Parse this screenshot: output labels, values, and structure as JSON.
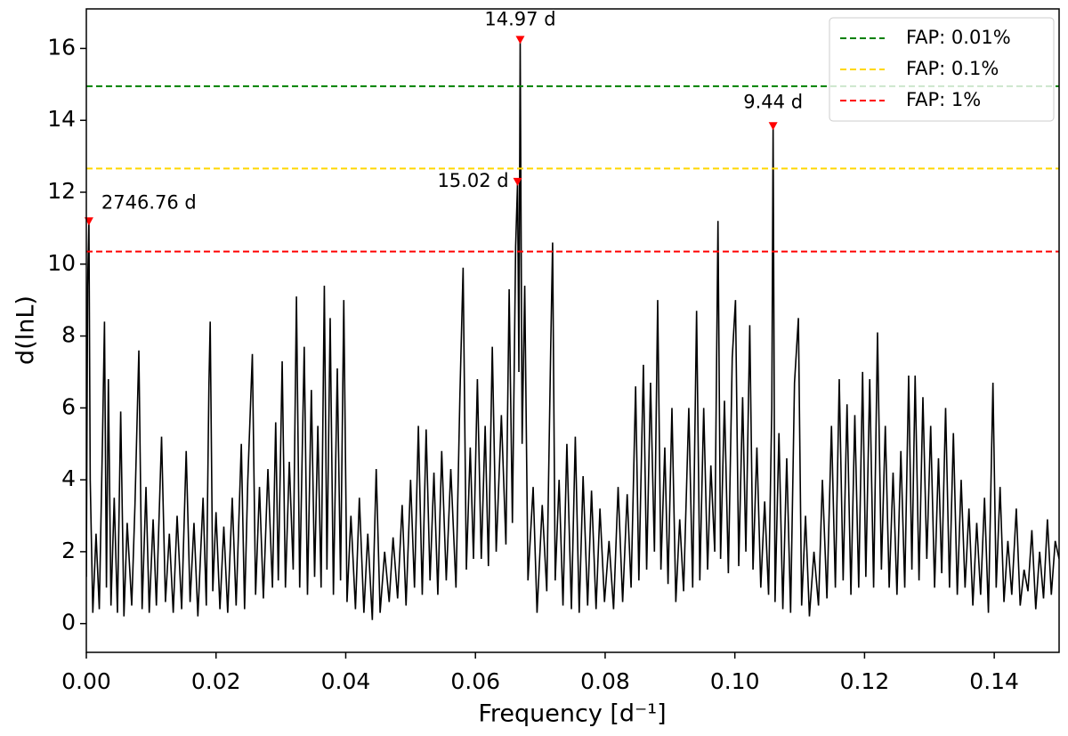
{
  "chart_data": {
    "type": "line",
    "xlabel": "Frequency [d⁻¹]",
    "ylabel": "d(lnL)",
    "xlim": [
      0,
      0.15
    ],
    "ylim": [
      -0.8,
      17.1
    ],
    "xticks": [
      {
        "value": 0,
        "label": "0.00"
      },
      {
        "value": 0.02,
        "label": "0.02"
      },
      {
        "value": 0.04,
        "label": "0.04"
      },
      {
        "value": 0.06,
        "label": "0.06"
      },
      {
        "value": 0.08,
        "label": "0.08"
      },
      {
        "value": 0.1,
        "label": "0.10"
      },
      {
        "value": 0.12,
        "label": "0.12"
      },
      {
        "value": 0.14,
        "label": "0.14"
      }
    ],
    "yticks": [
      0,
      2,
      4,
      6,
      8,
      10,
      12,
      14,
      16
    ],
    "legend": "upper right",
    "x": [
      0.0,
      0.0002,
      0.0004,
      0.0006,
      0.001,
      0.0015,
      0.002,
      0.0025,
      0.0028,
      0.0031,
      0.0034,
      0.0038,
      0.0043,
      0.0048,
      0.0053,
      0.0058,
      0.0063,
      0.007,
      0.0075,
      0.0081,
      0.0086,
      0.0092,
      0.0097,
      0.0103,
      0.0108,
      0.0116,
      0.0122,
      0.0128,
      0.0134,
      0.014,
      0.0147,
      0.0154,
      0.016,
      0.0166,
      0.0172,
      0.018,
      0.0185,
      0.0189,
      0.0191,
      0.0195,
      0.02,
      0.0206,
      0.0212,
      0.0218,
      0.0225,
      0.0231,
      0.0239,
      0.0244,
      0.0249,
      0.0256,
      0.0261,
      0.0267,
      0.0273,
      0.028,
      0.0287,
      0.0292,
      0.0296,
      0.0302,
      0.0307,
      0.0313,
      0.0319,
      0.0324,
      0.0329,
      0.0336,
      0.0341,
      0.0347,
      0.0352,
      0.0357,
      0.0362,
      0.0367,
      0.0371,
      0.0376,
      0.0381,
      0.0387,
      0.0392,
      0.0397,
      0.0402,
      0.0408,
      0.0415,
      0.0421,
      0.0428,
      0.0434,
      0.0441,
      0.0447,
      0.0453,
      0.046,
      0.0467,
      0.0473,
      0.048,
      0.0487,
      0.0493,
      0.05,
      0.0506,
      0.0512,
      0.0518,
      0.0524,
      0.053,
      0.0536,
      0.0542,
      0.0548,
      0.0555,
      0.0562,
      0.057,
      0.0576,
      0.0581,
      0.0586,
      0.0592,
      0.0597,
      0.0603,
      0.0609,
      0.0615,
      0.062,
      0.0626,
      0.0632,
      0.064,
      0.0647,
      0.0652,
      0.0657,
      0.0662,
      0.0665,
      0.0667,
      0.0669,
      0.0672,
      0.0676,
      0.0681,
      0.0689,
      0.0695,
      0.0703,
      0.071,
      0.0716,
      0.0719,
      0.0723,
      0.0729,
      0.0735,
      0.0741,
      0.0748,
      0.0754,
      0.076,
      0.0766,
      0.0773,
      0.0779,
      0.0786,
      0.0792,
      0.0799,
      0.0806,
      0.0813,
      0.082,
      0.0827,
      0.0834,
      0.084,
      0.0847,
      0.0852,
      0.0859,
      0.0864,
      0.087,
      0.0876,
      0.0881,
      0.0886,
      0.0892,
      0.0897,
      0.0903,
      0.0909,
      0.0915,
      0.0921,
      0.0929,
      0.0935,
      0.0941,
      0.0946,
      0.0952,
      0.0958,
      0.0963,
      0.0969,
      0.0974,
      0.0978,
      0.0984,
      0.099,
      0.0996,
      0.1001,
      0.1006,
      0.1012,
      0.1017,
      0.1023,
      0.1028,
      0.1034,
      0.104,
      0.1046,
      0.1052,
      0.1057,
      0.1059,
      0.1062,
      0.1068,
      0.1074,
      0.108,
      0.1086,
      0.1092,
      0.1098,
      0.1103,
      0.1109,
      0.1115,
      0.1122,
      0.1129,
      0.1135,
      0.1142,
      0.1149,
      0.1155,
      0.1161,
      0.1167,
      0.1173,
      0.1179,
      0.1185,
      0.1191,
      0.1197,
      0.1202,
      0.1208,
      0.1214,
      0.122,
      0.1226,
      0.1232,
      0.1238,
      0.1244,
      0.125,
      0.1256,
      0.1262,
      0.1268,
      0.1273,
      0.1278,
      0.1284,
      0.129,
      0.1296,
      0.1302,
      0.1308,
      0.1314,
      0.1319,
      0.1325,
      0.1331,
      0.1337,
      0.1343,
      0.1349,
      0.1355,
      0.1361,
      0.1367,
      0.1373,
      0.1379,
      0.1385,
      0.1391,
      0.1398,
      0.1403,
      0.1409,
      0.1415,
      0.1421,
      0.1427,
      0.1434,
      0.144,
      0.1446,
      0.1452,
      0.1458,
      0.1464,
      0.147,
      0.1476,
      0.1482,
      0.1488,
      0.1494,
      0.15
    ],
    "series": [
      {
        "color": "#000000",
        "values": [
          1.3,
          9.4,
          11.2,
          4.0,
          0.3,
          2.5,
          0.4,
          5.2,
          8.4,
          1.0,
          6.8,
          0.5,
          3.5,
          0.3,
          5.9,
          0.2,
          2.8,
          0.5,
          3.3,
          7.6,
          0.4,
          3.8,
          0.3,
          2.9,
          0.5,
          5.2,
          0.6,
          2.5,
          0.3,
          3.0,
          0.4,
          4.8,
          0.6,
          2.8,
          0.2,
          3.5,
          0.5,
          6.6,
          8.4,
          0.9,
          3.1,
          0.4,
          2.7,
          0.3,
          3.5,
          0.5,
          5.0,
          0.4,
          4.0,
          7.5,
          0.8,
          3.8,
          0.7,
          4.3,
          1.0,
          5.6,
          1.2,
          7.3,
          1.0,
          4.5,
          1.5,
          9.1,
          1.0,
          7.7,
          0.8,
          6.5,
          1.3,
          5.5,
          1.0,
          9.4,
          1.5,
          8.5,
          0.8,
          7.1,
          1.2,
          9.0,
          0.6,
          3.0,
          0.4,
          3.5,
          0.3,
          2.5,
          0.1,
          4.3,
          0.3,
          2.0,
          0.6,
          2.4,
          0.7,
          3.3,
          0.5,
          4.0,
          1.0,
          5.5,
          0.8,
          5.4,
          1.2,
          4.2,
          0.8,
          4.8,
          1.2,
          4.3,
          1.0,
          6.3,
          9.9,
          1.5,
          4.9,
          1.8,
          6.8,
          1.8,
          5.5,
          1.6,
          7.7,
          2.0,
          5.8,
          2.2,
          9.3,
          2.8,
          10.5,
          12.3,
          7.0,
          16.25,
          5.0,
          9.4,
          1.2,
          3.8,
          0.3,
          3.3,
          0.9,
          7.6,
          10.6,
          1.2,
          4.0,
          0.5,
          5.0,
          0.4,
          5.2,
          0.3,
          4.1,
          0.5,
          3.7,
          0.4,
          3.2,
          0.6,
          2.3,
          0.4,
          3.8,
          0.6,
          3.6,
          1.0,
          6.6,
          1.2,
          7.2,
          1.5,
          6.7,
          2.0,
          9.0,
          1.5,
          4.9,
          1.1,
          6.0,
          0.6,
          2.9,
          0.9,
          6.0,
          1.0,
          8.7,
          1.2,
          6.0,
          1.5,
          4.4,
          2.0,
          11.2,
          1.8,
          6.2,
          1.4,
          7.4,
          9.0,
          1.6,
          6.3,
          2.0,
          8.3,
          1.5,
          4.9,
          1.0,
          3.4,
          0.8,
          6.0,
          13.85,
          0.6,
          5.3,
          0.4,
          4.6,
          0.3,
          6.7,
          8.5,
          0.5,
          3.0,
          0.2,
          2.0,
          0.5,
          4.0,
          0.7,
          5.5,
          1.0,
          6.8,
          1.2,
          6.1,
          0.8,
          5.8,
          1.0,
          7.0,
          1.3,
          6.8,
          1.0,
          8.1,
          1.5,
          5.5,
          1.0,
          4.2,
          0.8,
          4.8,
          1.0,
          6.9,
          1.5,
          6.9,
          1.2,
          6.3,
          1.8,
          5.5,
          1.0,
          4.6,
          1.4,
          6.0,
          1.0,
          5.3,
          0.8,
          4.0,
          1.0,
          3.2,
          0.5,
          2.8,
          0.8,
          3.5,
          0.3,
          6.7,
          1.0,
          3.8,
          0.6,
          2.3,
          0.8,
          3.2,
          0.5,
          1.5,
          0.9,
          2.6,
          0.4,
          2.0,
          0.7,
          2.9,
          0.8,
          2.3,
          1.8
        ]
      }
    ],
    "hlines": [
      {
        "name": "FAP: 0.01%",
        "color": "#008000",
        "y": 14.95
      },
      {
        "name": "FAP: 0.1%",
        "color": "#ffd700",
        "y": 12.66
      },
      {
        "name": "FAP: 1%",
        "color": "#ff0000",
        "y": 10.35
      }
    ],
    "marker_color": "#ff0000",
    "annotations": [
      {
        "text": "2746.76 d",
        "x": 0.0004,
        "y": 11.2
      },
      {
        "text": "14.97 d",
        "x": 0.0669,
        "y": 16.25
      },
      {
        "text": "15.02 d",
        "x": 0.0665,
        "y": 12.3
      },
      {
        "text": "9.44 d",
        "x": 0.1059,
        "y": 13.85
      }
    ]
  }
}
